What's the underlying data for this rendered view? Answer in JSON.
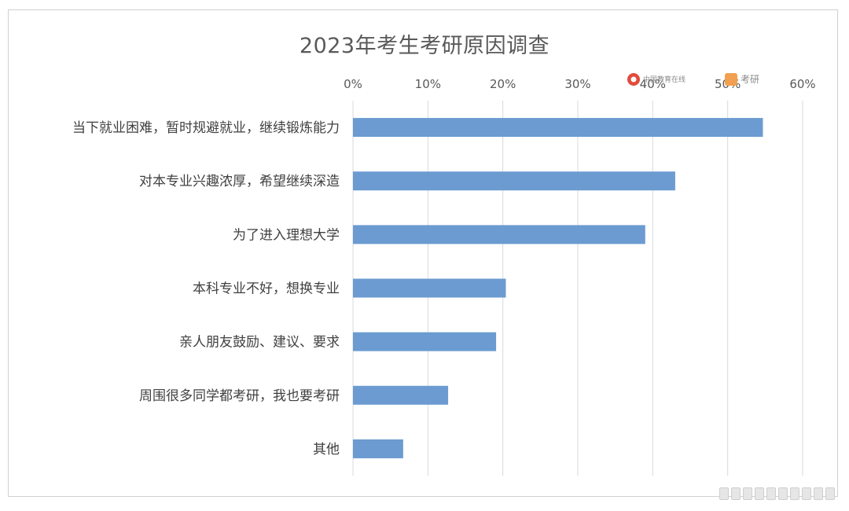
{
  "chart_data": {
    "type": "bar",
    "orientation": "horizontal",
    "title": "2023年考生考研原因调查",
    "categories": [
      "当下就业困难，暂时规避就业，继续锻炼能力",
      "对本专业兴趣浓厚，希望继续深造",
      "为了进入理想大学",
      "本科专业不好，想换专业",
      "亲人朋友鼓励、建议、要求",
      "周围很多同学都考研，我也要考研",
      "其他"
    ],
    "values": [
      0.547,
      0.43,
      0.39,
      0.204,
      0.191,
      0.127,
      0.067
    ],
    "xlim": [
      0,
      0.6
    ],
    "xticks": [
      "0%",
      "10%",
      "20%",
      "30%",
      "40%",
      "50%",
      "60%"
    ],
    "axis_position": "top",
    "grid": "vertical",
    "bar_color": "#6b9bd1"
  },
  "watermark": {
    "logo1": "中国教育在线",
    "logo2": "考研"
  }
}
